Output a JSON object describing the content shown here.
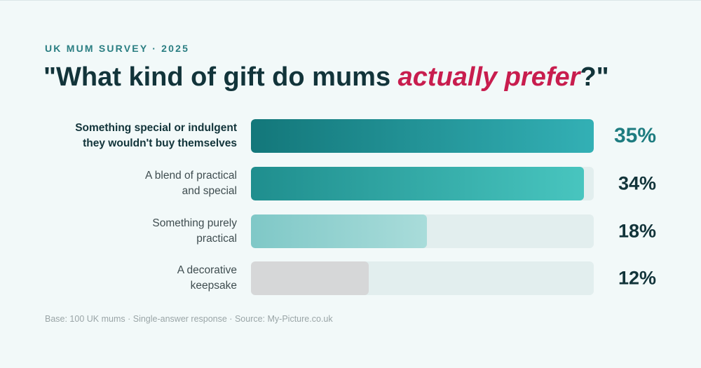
{
  "header": {
    "eyebrow": "UK MUM SURVEY · 2025",
    "title_before": "\"What kind of gift do mums ",
    "title_accent": "actually prefer",
    "title_after": "?\""
  },
  "chart_data": {
    "type": "bar",
    "orientation": "horizontal",
    "categories": [
      "Something special or indulgent they wouldn't buy themselves",
      "A blend of practical and special",
      "Something purely practical",
      "A decorative keepsake"
    ],
    "values": [
      35,
      34,
      18,
      12
    ],
    "value_labels": [
      "35%",
      "34%",
      "18%",
      "12%"
    ],
    "xlim": [
      0,
      35
    ],
    "grid": false,
    "highlighted_category": 0
  },
  "rows": [
    {
      "label_line1": "Something special or indulgent",
      "label_line2": "they wouldn't buy themselves",
      "value_label": "35%"
    },
    {
      "label_line1": "A blend of practical",
      "label_line2": "and special",
      "value_label": "34%"
    },
    {
      "label_line1": "Something purely",
      "label_line2": "practical",
      "value_label": "18%"
    },
    {
      "label_line1": "A decorative",
      "label_line2": "keepsake",
      "value_label": "12%"
    }
  ],
  "footnote": "Base: 100 UK mums · Single-answer response · Source: My-Picture.co.uk",
  "colors": {
    "accent": "#c81d4e",
    "primary_bar": "#1e7c80",
    "track": "#e2eeee",
    "muted_bar": "#d6d7d8"
  }
}
